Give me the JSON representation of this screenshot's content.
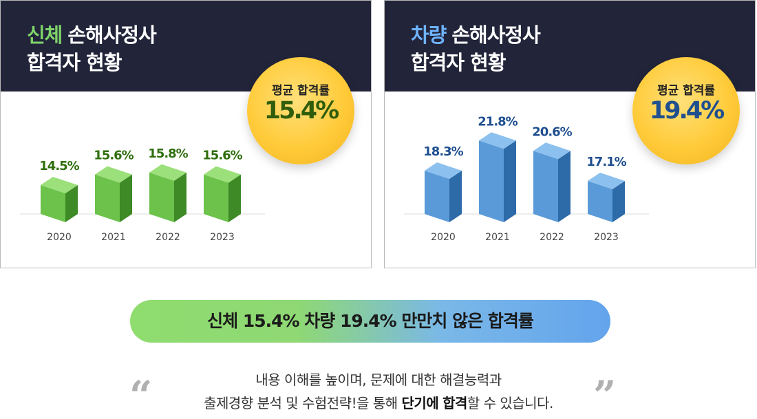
{
  "panels": [
    {
      "title_accent": "신체",
      "title_rest": "손해사정사",
      "title_line2": "합격자 현황",
      "badge_label": "평균 합격률",
      "badge_value": "15.4%"
    },
    {
      "title_accent": "차량",
      "title_rest": "손해사정사",
      "title_line2": "합격자 현황",
      "badge_label": "평균 합격률",
      "badge_value": "19.4%"
    }
  ],
  "chart_data": [
    {
      "type": "bar",
      "categories": [
        "2020",
        "2021",
        "2022",
        "2023"
      ],
      "values": [
        14.5,
        15.6,
        15.8,
        15.6
      ],
      "labels": [
        "14.5%",
        "15.6%",
        "15.8%",
        "15.6%"
      ],
      "colors": {
        "front": "#6cc24a",
        "side": "#3e8a27",
        "top": "#9be07a",
        "label": "#2f6e0e"
      }
    },
    {
      "type": "bar",
      "categories": [
        "2020",
        "2021",
        "2022",
        "2023"
      ],
      "values": [
        18.3,
        21.8,
        20.6,
        17.1
      ],
      "labels": [
        "18.3%",
        "21.8%",
        "20.6%",
        "17.1%"
      ],
      "colors": {
        "front": "#5a9ad8",
        "side": "#2d6aa8",
        "top": "#8cc0ee",
        "label": "#1f4f8f"
      }
    }
  ],
  "banner": {
    "text": "신체 15.4% 차량 19.4% 만만치 않은 합격률"
  },
  "description": {
    "line1": "내용 이해를 높이며, 문제에 대한 해결능력과",
    "line2_pre": "출제경향 분석 및 수험전략!을 통해 ",
    "line2_bold1": "단기에",
    "line2_mid": " ",
    "line2_bold2": "합격",
    "line2_post": "할 수 있습니다."
  },
  "quotes": {
    "open": "“",
    "close": "”"
  }
}
